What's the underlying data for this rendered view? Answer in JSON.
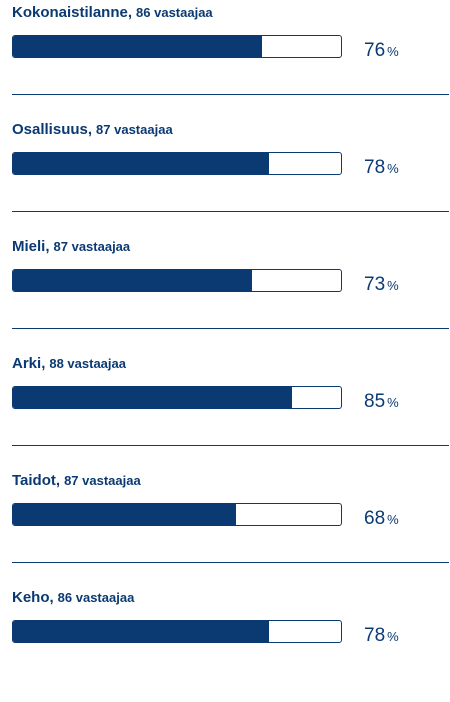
{
  "items": [
    {
      "label": "Kokonaistilanne",
      "separator": ",",
      "responders": "86 vastaajaa",
      "value": 76,
      "value_text": "76",
      "unit": "%"
    },
    {
      "label": "Osallisuus",
      "separator": ",",
      "responders": "87 vastaajaa",
      "value": 78,
      "value_text": "78",
      "unit": "%"
    },
    {
      "label": "Mieli",
      "separator": ",",
      "responders": "87 vastaajaa",
      "value": 73,
      "value_text": "73",
      "unit": "%"
    },
    {
      "label": "Arki",
      "separator": ",",
      "responders": "88 vastaajaa",
      "value": 85,
      "value_text": "85",
      "unit": "%"
    },
    {
      "label": "Taidot",
      "separator": ",",
      "responders": "87 vastaajaa",
      "value": 68,
      "value_text": "68",
      "unit": "%"
    },
    {
      "label": "Keho",
      "separator": ",",
      "responders": "86 vastaajaa",
      "value": 78,
      "value_text": "78",
      "unit": "%"
    }
  ],
  "colors": {
    "primary": "#0b3a73",
    "background": "#ffffff"
  }
}
